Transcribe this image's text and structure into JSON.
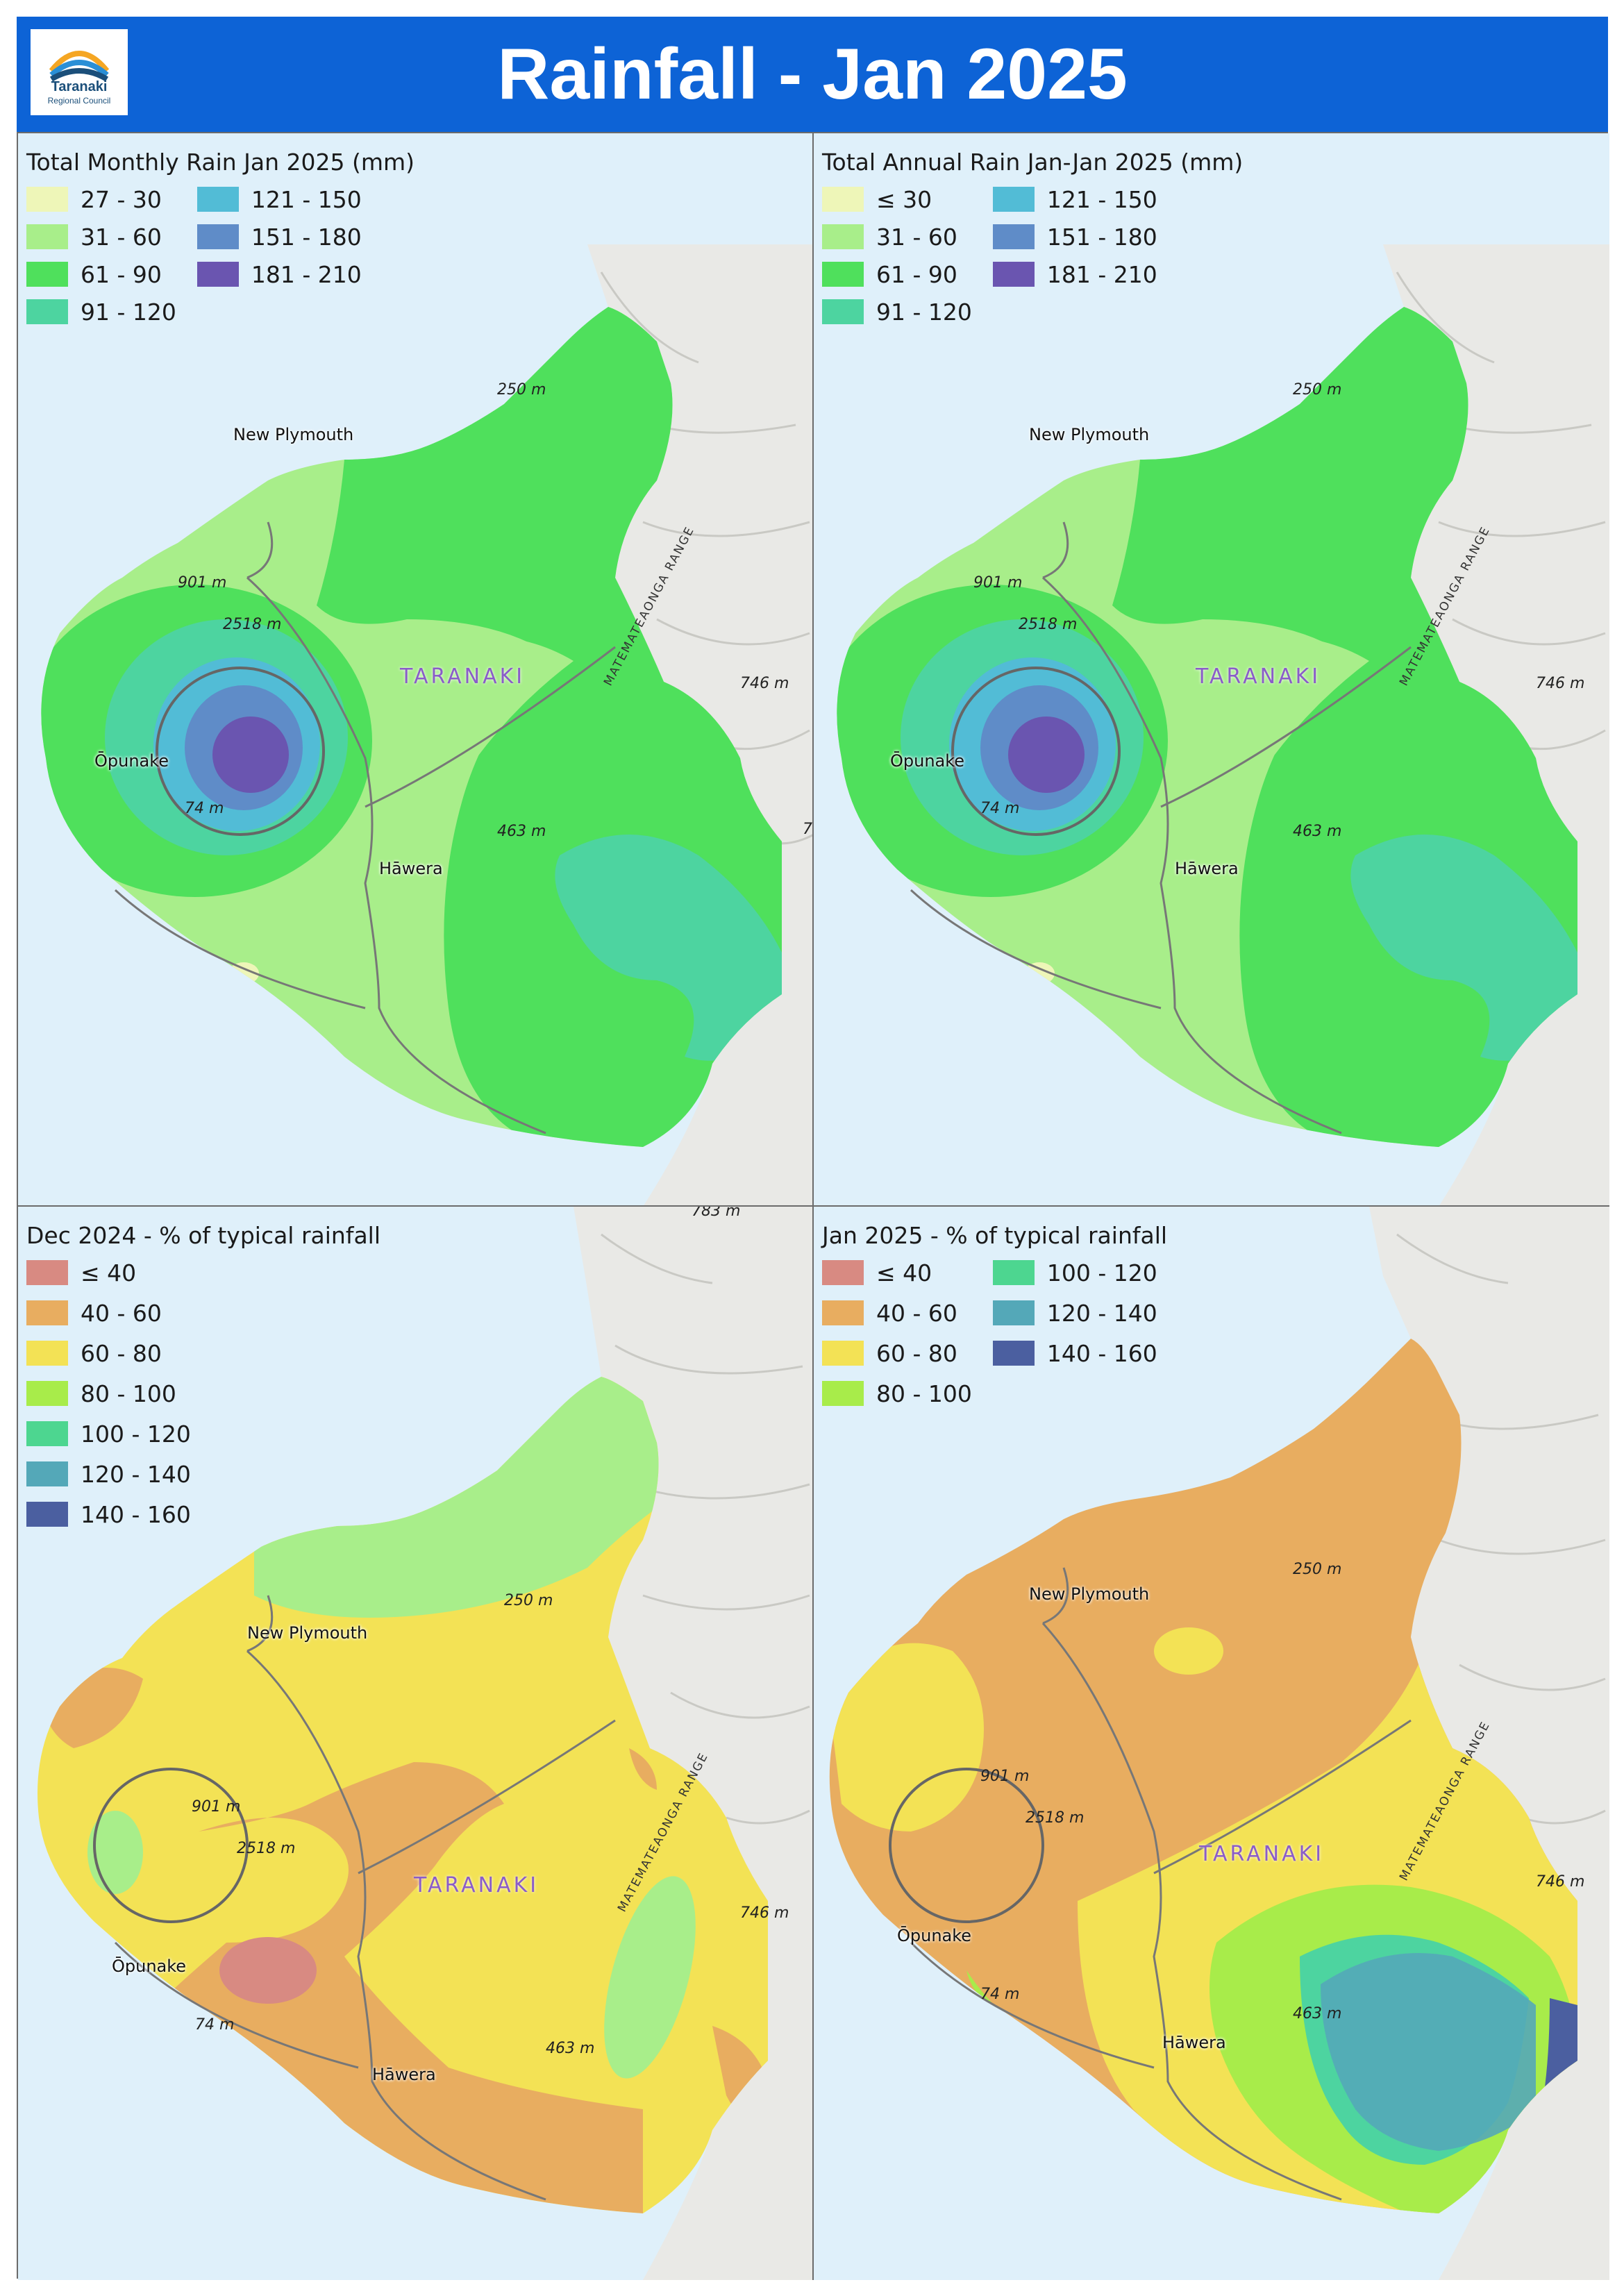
{
  "header": {
    "title": "Rainfall - Jan 2025",
    "logo_name": "Taranaki",
    "logo_sub": "Regional Council",
    "bg_color": "#0d63d6"
  },
  "map_labels": {
    "new_plymouth": "New Plymouth",
    "opunake": "Ōpunake",
    "hawera": "Hāwera",
    "taranaki": "TARANAKI",
    "range": "MATEMATEAONGA RANGE",
    "e901": "901 m",
    "e2518": "2518 m",
    "e250": "250 m",
    "e746": "746 m",
    "e463": "463 m",
    "e74": "74 m",
    "e783": "783 m",
    "e7": "7"
  },
  "panels": {
    "monthly": {
      "title": "Total Monthly Rain Jan 2025 (mm)",
      "legend_col1": [
        {
          "label": "27 - 30",
          "color": "#eef6b8"
        },
        {
          "label": "31 - 60",
          "color": "#a8ee8a"
        },
        {
          "label": "61 - 90",
          "color": "#4fe05c"
        },
        {
          "label": "91 - 120",
          "color": "#4dd4a0"
        }
      ],
      "legend_col2": [
        {
          "label": "121 - 150",
          "color": "#52bcd6"
        },
        {
          "label": "151 - 180",
          "color": "#5f8cc8"
        },
        {
          "label": "181 - 210",
          "color": "#6a55b0"
        }
      ]
    },
    "annual": {
      "title": "Total Annual Rain Jan-Jan 2025 (mm)",
      "legend_col1": [
        {
          "label": "≤ 30",
          "color": "#eef6b8"
        },
        {
          "label": "31 - 60",
          "color": "#a8ee8a"
        },
        {
          "label": "61 - 90",
          "color": "#4fe05c"
        },
        {
          "label": "91 - 120",
          "color": "#4dd4a0"
        }
      ],
      "legend_col2": [
        {
          "label": "121 - 150",
          "color": "#52bcd6"
        },
        {
          "label": "151 - 180",
          "color": "#5f8cc8"
        },
        {
          "label": "181 - 210",
          "color": "#6a55b0"
        }
      ]
    },
    "dec": {
      "title": "Dec 2024 - % of typical rainfall",
      "legend_col1": [
        {
          "label": "≤ 40",
          "color": "#d88a82"
        },
        {
          "label": "40 - 60",
          "color": "#e8ad60"
        },
        {
          "label": "60 - 80",
          "color": "#f3e255"
        },
        {
          "label": "80 - 100",
          "color": "#a8ec4a"
        },
        {
          "label": "100 - 120",
          "color": "#4dd690"
        },
        {
          "label": "120 - 140",
          "color": "#54a8b8"
        },
        {
          "label": "140 - 160",
          "color": "#4b5fa0"
        }
      ]
    },
    "jan": {
      "title": "Jan 2025 - % of typical rainfall",
      "legend_col1": [
        {
          "label": "≤ 40",
          "color": "#d88a82"
        },
        {
          "label": "40 - 60",
          "color": "#e8ad60"
        },
        {
          "label": "60 - 80",
          "color": "#f3e255"
        },
        {
          "label": "80 - 100",
          "color": "#a8ec4a"
        }
      ],
      "legend_col2": [
        {
          "label": "100 - 120",
          "color": "#4dd690"
        },
        {
          "label": "120 - 140",
          "color": "#54a8b8"
        },
        {
          "label": "140 - 160",
          "color": "#4b5fa0"
        }
      ]
    }
  }
}
